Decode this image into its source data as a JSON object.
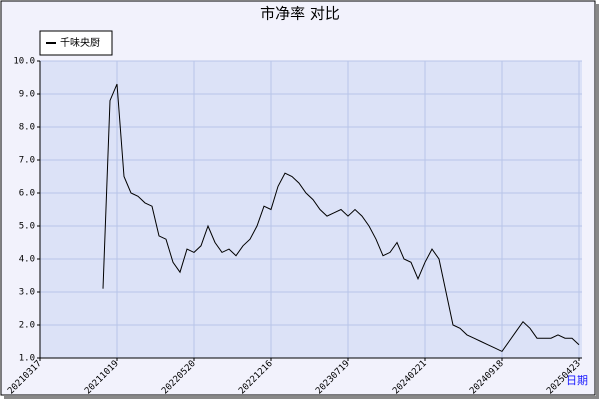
{
  "chart_data": {
    "type": "line",
    "title": "市净率 对比",
    "x_label": "日期",
    "categories": [
      "20210317",
      null,
      null,
      null,
      null,
      null,
      null,
      null,
      null,
      null,
      null,
      "20211019",
      null,
      null,
      null,
      null,
      null,
      null,
      null,
      null,
      null,
      null,
      "20220520",
      null,
      null,
      null,
      null,
      null,
      null,
      null,
      null,
      null,
      null,
      "20221216",
      null,
      null,
      null,
      null,
      null,
      null,
      null,
      null,
      null,
      null,
      "20230719",
      null,
      null,
      null,
      null,
      null,
      null,
      null,
      null,
      null,
      null,
      "20240221",
      null,
      null,
      null,
      null,
      null,
      null,
      null,
      null,
      null,
      null,
      "20240918",
      null,
      null,
      null,
      null,
      null,
      null,
      null,
      null,
      null,
      null,
      "20250423"
    ],
    "series": [
      {
        "name": "千味央厨",
        "color": "#000000",
        "values": [
          null,
          null,
          null,
          null,
          null,
          null,
          null,
          null,
          null,
          3.1,
          8.8,
          9.3,
          6.5,
          6.0,
          5.9,
          5.7,
          5.6,
          4.7,
          4.6,
          3.9,
          3.6,
          4.3,
          4.2,
          4.4,
          5.0,
          4.5,
          4.2,
          4.3,
          4.1,
          4.4,
          4.6,
          5.0,
          5.6,
          5.5,
          6.2,
          6.6,
          6.5,
          6.3,
          6.0,
          5.8,
          5.5,
          5.3,
          5.4,
          5.5,
          5.3,
          5.5,
          5.3,
          5.0,
          4.6,
          4.1,
          4.2,
          4.5,
          4.0,
          3.9,
          3.4,
          3.9,
          4.3,
          4.0,
          3.0,
          2.0,
          1.9,
          1.7,
          1.6,
          1.5,
          1.4,
          1.3,
          1.2,
          1.5,
          1.8,
          2.1,
          1.9,
          1.6,
          1.6,
          1.6,
          1.7,
          1.6,
          1.6,
          1.4
        ]
      }
    ],
    "ylim": [
      1,
      10
    ],
    "yticks": [
      {
        "value": 1,
        "label": "1.0"
      },
      {
        "value": 2,
        "label": "2.0"
      },
      {
        "value": 3,
        "label": "3.0"
      },
      {
        "value": 4,
        "label": "4.0"
      },
      {
        "value": 5,
        "label": "5.0"
      },
      {
        "value": 6,
        "label": "6.0"
      },
      {
        "value": 7,
        "label": "7.0"
      },
      {
        "value": 8,
        "label": "8.0"
      },
      {
        "value": 9,
        "label": "9.0"
      },
      {
        "value": 10,
        "label": "10.0"
      }
    ],
    "grid": true,
    "legend": "top-left"
  }
}
